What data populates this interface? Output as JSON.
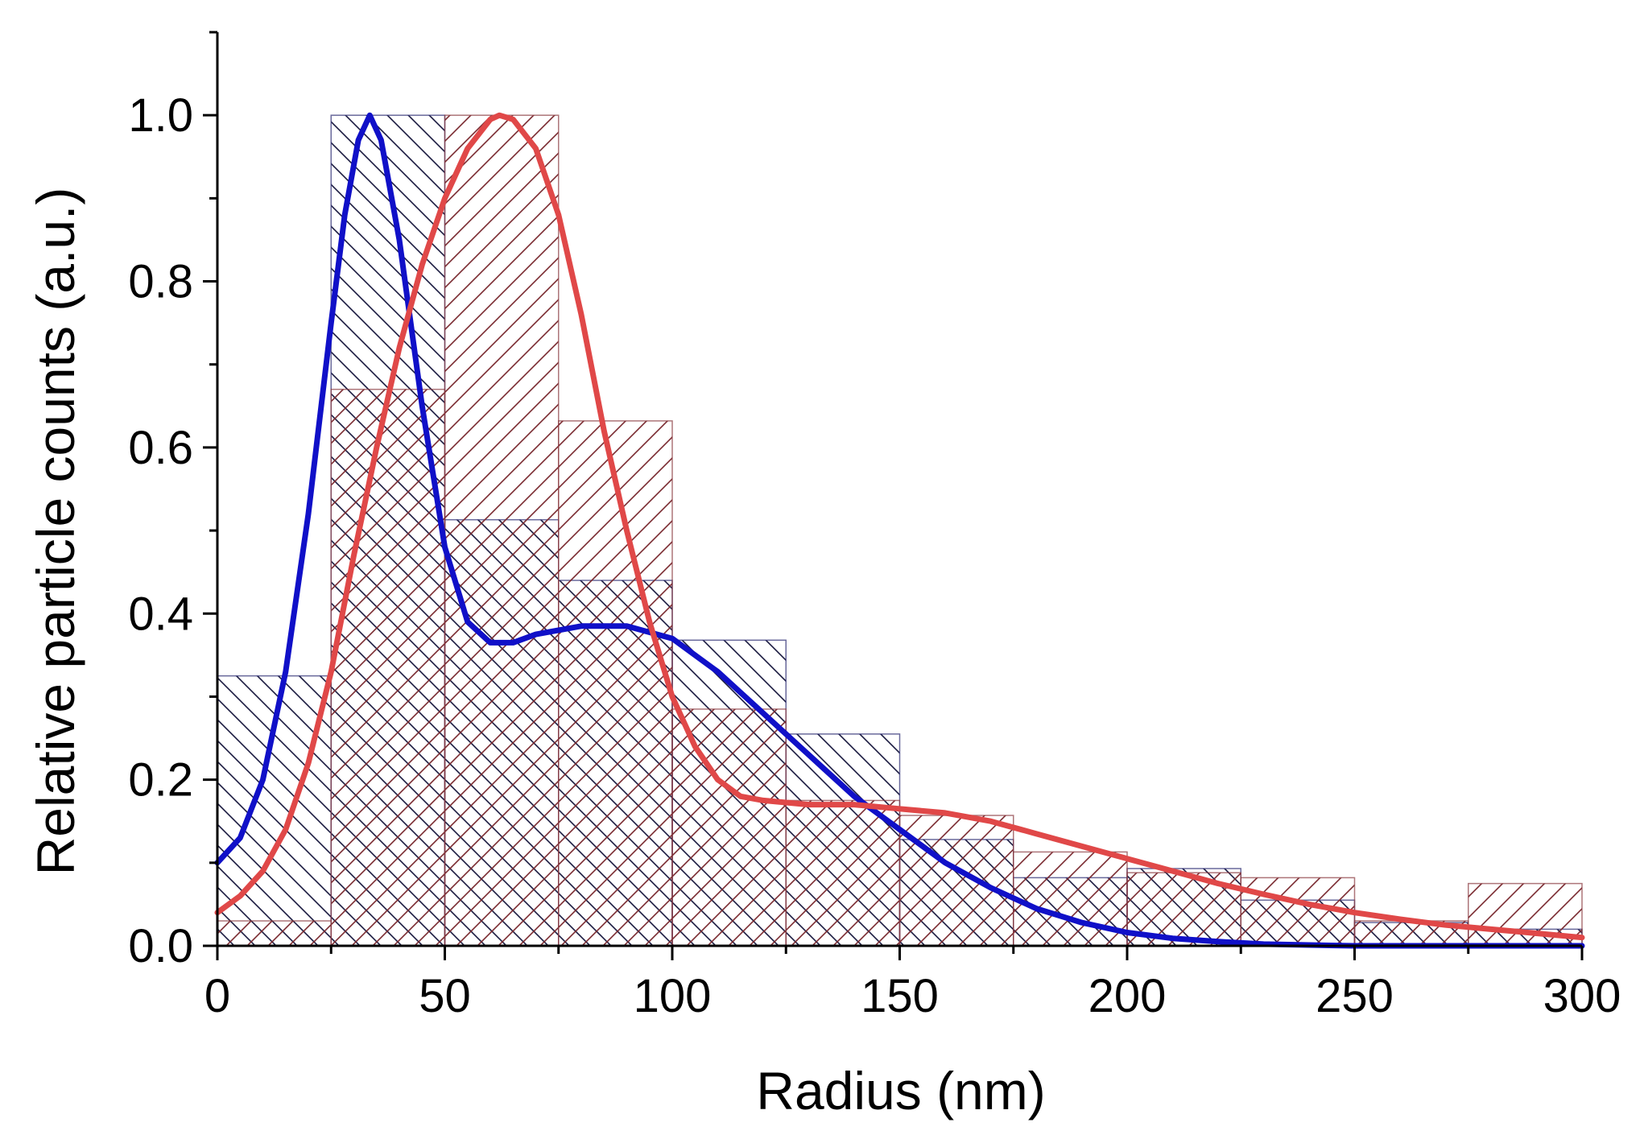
{
  "chart_data": {
    "type": "bar",
    "title": "",
    "xlabel": "Radius (nm)",
    "ylabel": "Relative particle counts (a.u.)",
    "xlim": [
      0,
      300
    ],
    "ylim": [
      0,
      1.1
    ],
    "grid": false,
    "legend": "none",
    "x_ticks": [
      "0",
      "50",
      "100",
      "150",
      "200",
      "250",
      "300"
    ],
    "y_ticks": [
      "0.0",
      "0.2",
      "0.4",
      "0.6",
      "0.8",
      "1.0"
    ],
    "bin_edges": [
      0,
      25,
      50,
      75,
      100,
      125,
      150,
      175,
      200,
      225,
      250,
      275,
      300
    ],
    "series": [
      {
        "color": "#1010c8",
        "hatch": "backslash",
        "histogram": [
          0.325,
          1.0,
          0.513,
          0.44,
          0.368,
          0.255,
          0.128,
          0.082,
          0.093,
          0.055,
          0.028,
          0.02
        ],
        "curve": [
          [
            0,
            0.1
          ],
          [
            5,
            0.13
          ],
          [
            10,
            0.2
          ],
          [
            15,
            0.33
          ],
          [
            20,
            0.52
          ],
          [
            25,
            0.75
          ],
          [
            28,
            0.88
          ],
          [
            31,
            0.97
          ],
          [
            33.5,
            1.0
          ],
          [
            36,
            0.97
          ],
          [
            40,
            0.85
          ],
          [
            45,
            0.65
          ],
          [
            50,
            0.48
          ],
          [
            55,
            0.39
          ],
          [
            60,
            0.365
          ],
          [
            65,
            0.365
          ],
          [
            70,
            0.375
          ],
          [
            80,
            0.385
          ],
          [
            90,
            0.385
          ],
          [
            100,
            0.37
          ],
          [
            110,
            0.33
          ],
          [
            120,
            0.28
          ],
          [
            130,
            0.23
          ],
          [
            140,
            0.18
          ],
          [
            150,
            0.14
          ],
          [
            160,
            0.1
          ],
          [
            170,
            0.07
          ],
          [
            180,
            0.045
          ],
          [
            190,
            0.028
          ],
          [
            200,
            0.016
          ],
          [
            210,
            0.009
          ],
          [
            220,
            0.005
          ],
          [
            230,
            0.002
          ],
          [
            240,
            0.001
          ],
          [
            250,
            0.0
          ],
          [
            275,
            0.0
          ],
          [
            300,
            0.0
          ]
        ]
      },
      {
        "color": "#e04848",
        "hatch": "slash",
        "histogram": [
          0.03,
          0.67,
          1.0,
          0.632,
          0.285,
          0.175,
          0.157,
          0.113,
          0.088,
          0.082,
          0.03,
          0.075
        ],
        "curve": [
          [
            0,
            0.04
          ],
          [
            5,
            0.06
          ],
          [
            10,
            0.09
          ],
          [
            15,
            0.14
          ],
          [
            20,
            0.22
          ],
          [
            25,
            0.33
          ],
          [
            30,
            0.47
          ],
          [
            35,
            0.6
          ],
          [
            40,
            0.72
          ],
          [
            45,
            0.82
          ],
          [
            50,
            0.9
          ],
          [
            55,
            0.96
          ],
          [
            60,
            0.995
          ],
          [
            62,
            1.0
          ],
          [
            65,
            0.995
          ],
          [
            70,
            0.96
          ],
          [
            75,
            0.88
          ],
          [
            80,
            0.76
          ],
          [
            85,
            0.62
          ],
          [
            90,
            0.5
          ],
          [
            95,
            0.39
          ],
          [
            100,
            0.3
          ],
          [
            105,
            0.24
          ],
          [
            110,
            0.2
          ],
          [
            115,
            0.18
          ],
          [
            120,
            0.175
          ],
          [
            130,
            0.17
          ],
          [
            140,
            0.17
          ],
          [
            150,
            0.165
          ],
          [
            160,
            0.16
          ],
          [
            170,
            0.15
          ],
          [
            180,
            0.135
          ],
          [
            190,
            0.12
          ],
          [
            200,
            0.105
          ],
          [
            210,
            0.09
          ],
          [
            220,
            0.075
          ],
          [
            230,
            0.062
          ],
          [
            240,
            0.05
          ],
          [
            250,
            0.04
          ],
          [
            260,
            0.032
          ],
          [
            270,
            0.025
          ],
          [
            280,
            0.02
          ],
          [
            290,
            0.015
          ],
          [
            300,
            0.01
          ]
        ]
      }
    ]
  }
}
